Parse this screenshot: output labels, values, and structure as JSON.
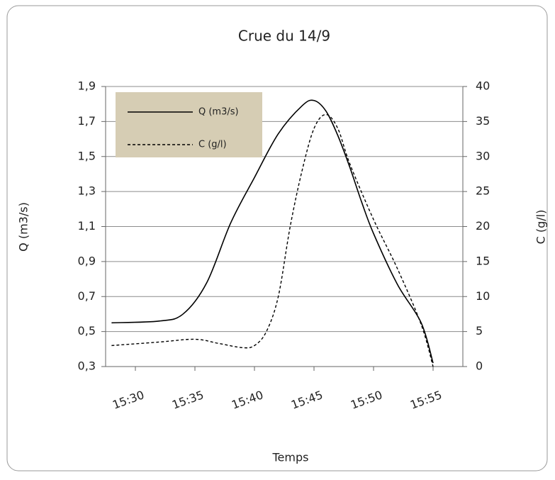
{
  "chart_data": {
    "type": "line",
    "title": "Crue du 14/9",
    "x_label": "Temps",
    "y_label": "Q (m3/s)",
    "y2_label": "C (g/l)",
    "xlim": [
      "15:27:30",
      "15:57:30"
    ],
    "xticks": [
      "15:30",
      "15:35",
      "15:40",
      "15:45",
      "15:50",
      "15:55"
    ],
    "ylim": [
      0.3,
      1.9
    ],
    "yticks": [
      {
        "value": 0.3,
        "label": "0,3"
      },
      {
        "value": 0.5,
        "label": "0,5"
      },
      {
        "value": 0.7,
        "label": "0,7"
      },
      {
        "value": 0.9,
        "label": "0,9"
      },
      {
        "value": 1.1,
        "label": "1,1"
      },
      {
        "value": 1.3,
        "label": "1,3"
      },
      {
        "value": 1.5,
        "label": "1,5"
      },
      {
        "value": 1.7,
        "label": "1,7"
      },
      {
        "value": 1.9,
        "label": "1,9"
      }
    ],
    "y2lim": [
      0,
      40
    ],
    "y2ticks": [
      0,
      5,
      10,
      15,
      20,
      25,
      30,
      35,
      40
    ],
    "grid": true,
    "legend": "upper left",
    "series": [
      {
        "name": "Q (m3/s)",
        "color": "#000000",
        "dash": "solid",
        "x": [
          "15:28",
          "15:32",
          "15:34",
          "15:36",
          "15:38",
          "15:40",
          "15:42",
          "15:44",
          "15:45",
          "15:46",
          "15:47",
          "15:48",
          "15:49",
          "15:50",
          "15:52",
          "15:54",
          "15:55"
        ],
        "values": [
          0.55,
          0.56,
          0.6,
          0.78,
          1.12,
          1.38,
          1.63,
          1.79,
          1.82,
          1.76,
          1.62,
          1.44,
          1.24,
          1.06,
          0.77,
          0.55,
          0.32
        ]
      },
      {
        "name": "C (g/l)",
        "color": "#000000",
        "dash": "dashed",
        "axis": "y2",
        "x": [
          "15:28",
          "15:32",
          "15:35",
          "15:37",
          "15:39",
          "15:40",
          "15:41",
          "15:42",
          "15:43",
          "15:44",
          "15:45",
          "15:46",
          "15:47",
          "15:48",
          "15:50",
          "15:52",
          "15:54",
          "15:55"
        ],
        "values": [
          3.0,
          3.5,
          3.9,
          3.3,
          2.7,
          3.0,
          5,
          10,
          20,
          28,
          34,
          36,
          34,
          29,
          21,
          14,
          6,
          0
        ]
      }
    ]
  }
}
